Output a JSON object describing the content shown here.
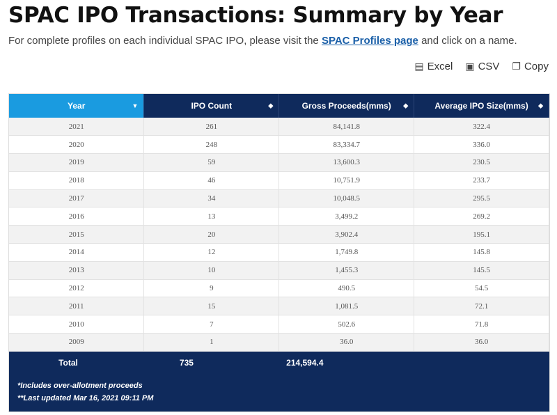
{
  "header": {
    "title": "SPAC IPO Transactions: Summary by Year",
    "intro_before": "For complete profiles on each individual SPAC IPO, please visit the",
    "intro_link": "SPAC Profiles page",
    "intro_after": "and click on a name."
  },
  "exports": {
    "excel": "Excel",
    "csv": "CSV",
    "copy": "Copy"
  },
  "table": {
    "columns": [
      "Year",
      "IPO Count",
      "Gross Proceeds(mms)",
      "Average IPO Size(mms)"
    ],
    "rows": [
      [
        "2021",
        "261",
        "84,141.8",
        "322.4"
      ],
      [
        "2020",
        "248",
        "83,334.7",
        "336.0"
      ],
      [
        "2019",
        "59",
        "13,600.3",
        "230.5"
      ],
      [
        "2018",
        "46",
        "10,751.9",
        "233.7"
      ],
      [
        "2017",
        "34",
        "10,048.5",
        "295.5"
      ],
      [
        "2016",
        "13",
        "3,499.2",
        "269.2"
      ],
      [
        "2015",
        "20",
        "3,902.4",
        "195.1"
      ],
      [
        "2014",
        "12",
        "1,749.8",
        "145.8"
      ],
      [
        "2013",
        "10",
        "1,455.3",
        "145.5"
      ],
      [
        "2012",
        "9",
        "490.5",
        "54.5"
      ],
      [
        "2011",
        "15",
        "1,081.5",
        "72.1"
      ],
      [
        "2010",
        "7",
        "502.6",
        "71.8"
      ],
      [
        "2009",
        "1",
        "36.0",
        "36.0"
      ]
    ],
    "total": {
      "label": "Total",
      "count": "735",
      "proceeds": "214,594.4"
    },
    "notes": [
      "*Includes over-allotment proceeds",
      "**Last updated Mar 16, 2021 09:11 PM"
    ]
  }
}
